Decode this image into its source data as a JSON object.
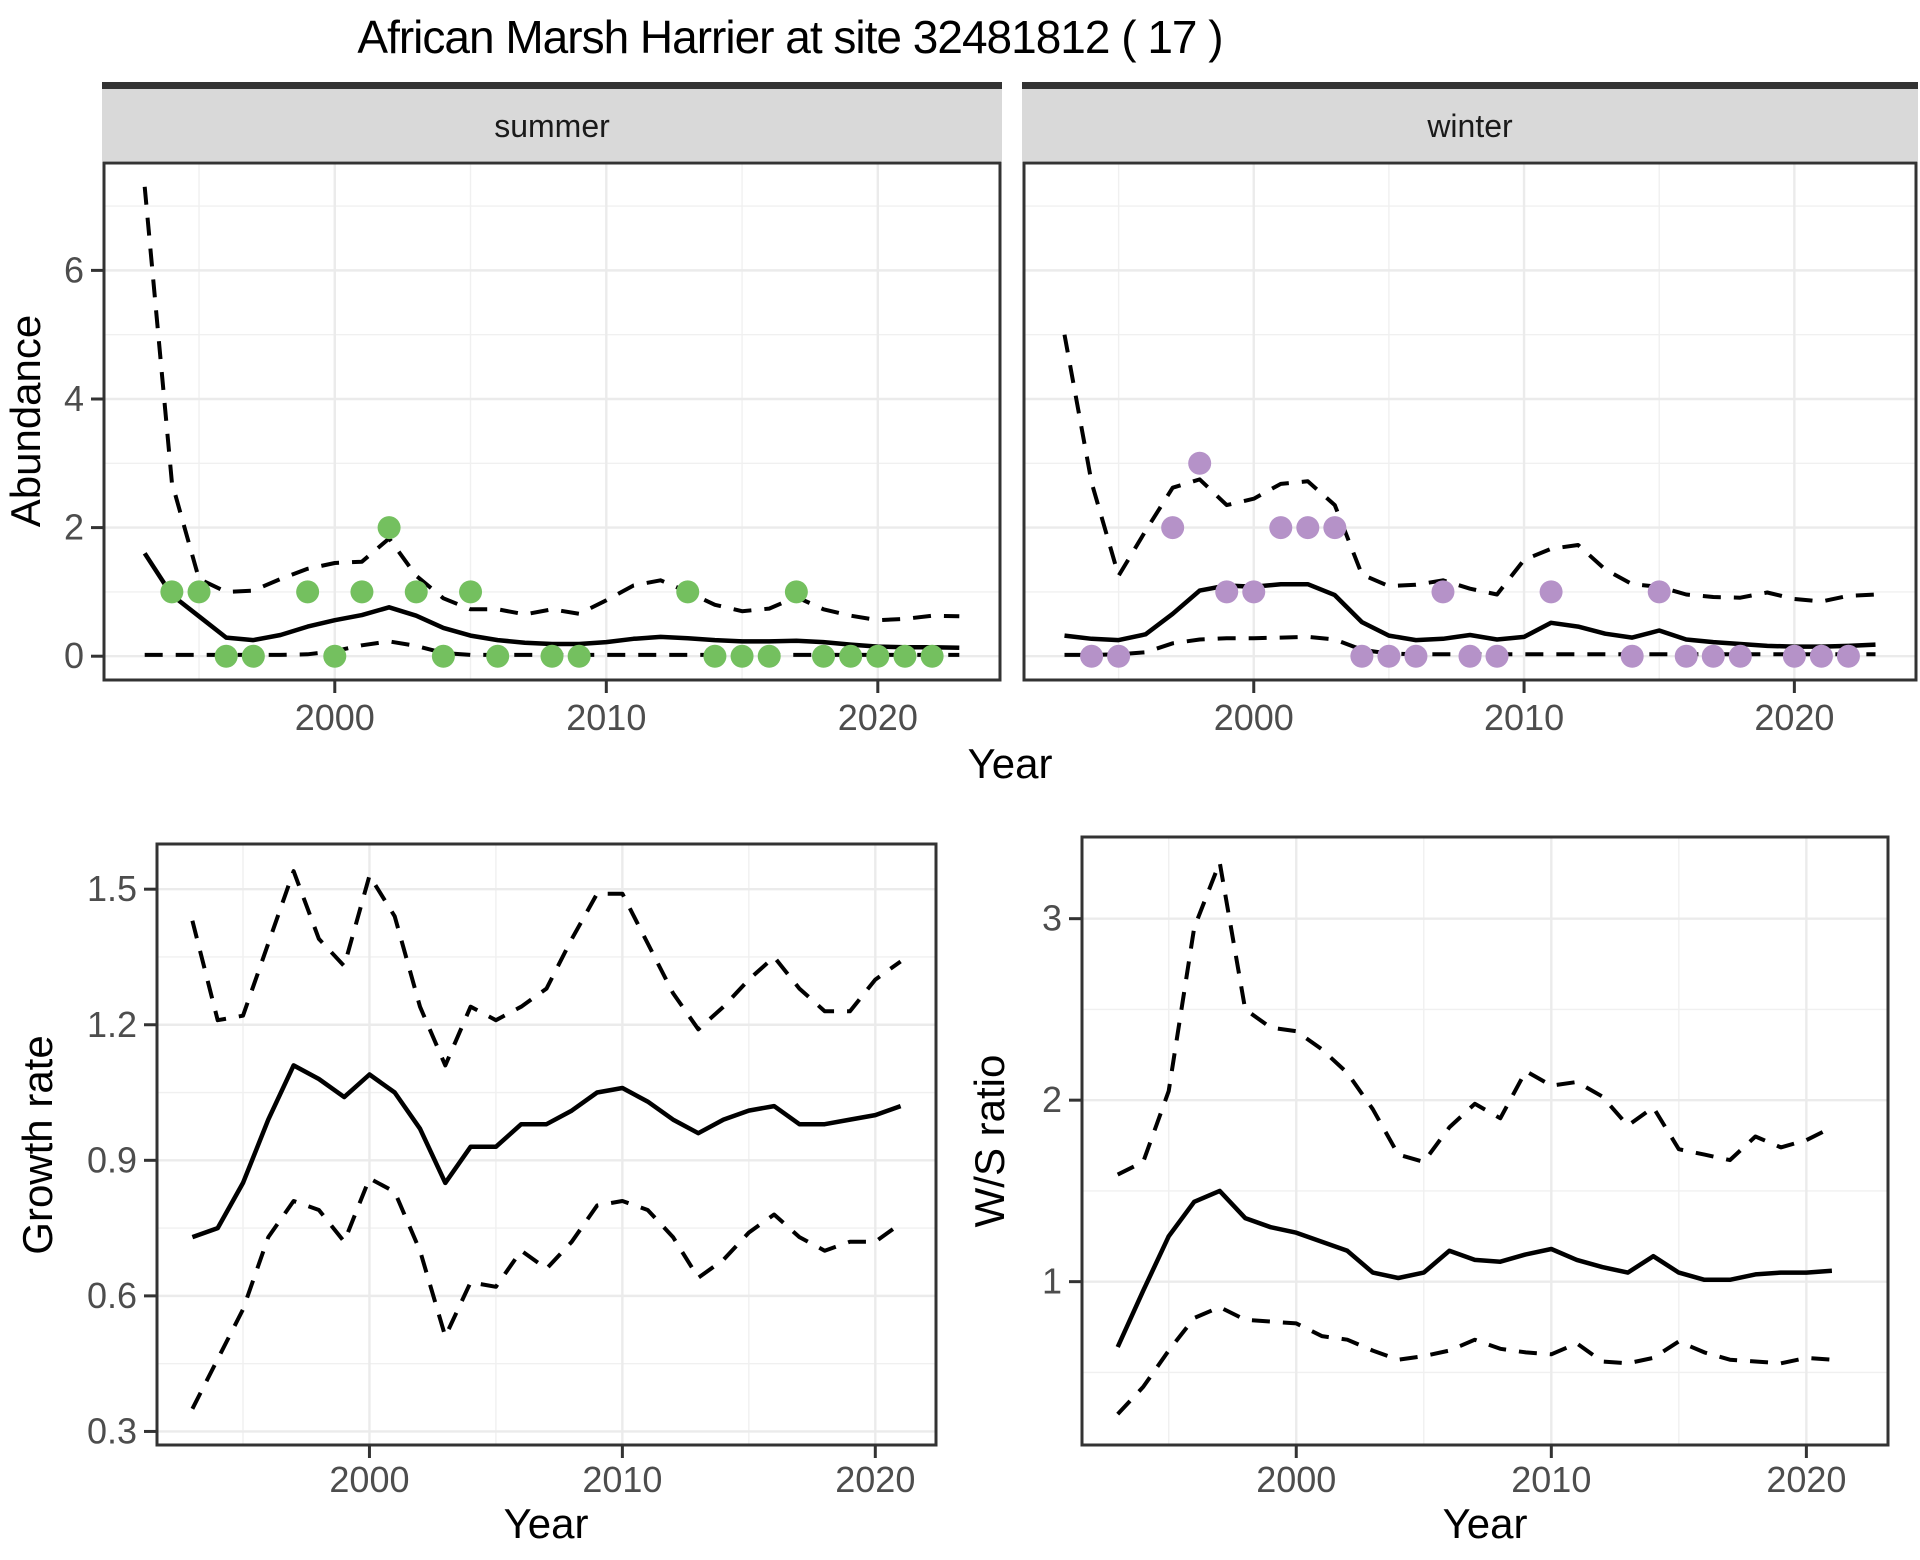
{
  "title": "African Marsh Harrier at site 32481812 ( 17 )",
  "top_row": {
    "ylabel": "Abundance",
    "xlabel": "Year",
    "facets": [
      {
        "label": "summer"
      },
      {
        "label": "winter"
      }
    ]
  },
  "bottom_row": {
    "left": {
      "ylabel": "Growth rate",
      "xlabel": "Year"
    },
    "right": {
      "ylabel": "W/S ratio",
      "xlabel": "Year"
    }
  },
  "colors": {
    "summer_point": "#74c05f",
    "winter_point": "#b592c8",
    "line": "#000000",
    "grid_major": "#ebebeb",
    "grid_minor": "#f0f0f0",
    "panel_border": "#333333",
    "strip_fill": "#d9d9d9",
    "strip_border": "#333333",
    "tick_text": "#4d4d4d",
    "axis_title_text": "#000000"
  },
  "chart_data": [
    {
      "id": "abundance-summer",
      "type": "line",
      "facet_label": "summer",
      "xlabel": "Year",
      "ylabel": "Abundance",
      "x": [
        1993,
        1994,
        1995,
        1996,
        1997,
        1998,
        1999,
        2000,
        2001,
        2002,
        2003,
        2004,
        2005,
        2006,
        2007,
        2008,
        2009,
        2010,
        2011,
        2012,
        2013,
        2014,
        2015,
        2016,
        2017,
        2018,
        2019,
        2020,
        2021,
        2022,
        2023
      ],
      "series": [
        {
          "name": "fitted",
          "style": "solid",
          "values": [
            1.6,
            0.95,
            0.62,
            0.29,
            0.25,
            0.33,
            0.46,
            0.56,
            0.64,
            0.76,
            0.63,
            0.44,
            0.32,
            0.25,
            0.21,
            0.19,
            0.19,
            0.22,
            0.27,
            0.3,
            0.28,
            0.25,
            0.23,
            0.23,
            0.24,
            0.22,
            0.18,
            0.15,
            0.14,
            0.14,
            0.13
          ]
        },
        {
          "name": "ci_upper",
          "style": "dashed",
          "values": [
            7.3,
            2.7,
            1.2,
            1.0,
            1.02,
            1.2,
            1.36,
            1.45,
            1.47,
            1.83,
            1.25,
            0.9,
            0.73,
            0.73,
            0.65,
            0.73,
            0.66,
            0.87,
            1.1,
            1.18,
            1.0,
            0.8,
            0.7,
            0.74,
            0.92,
            0.73,
            0.63,
            0.56,
            0.58,
            0.63,
            0.62
          ]
        },
        {
          "name": "ci_lower",
          "style": "dashed",
          "values": [
            0.02,
            0.02,
            0.02,
            0.02,
            0.02,
            0.02,
            0.03,
            0.08,
            0.17,
            0.23,
            0.16,
            0.05,
            0.02,
            0.02,
            0.02,
            0.02,
            0.02,
            0.02,
            0.02,
            0.02,
            0.02,
            0.02,
            0.02,
            0.02,
            0.02,
            0.02,
            0.02,
            0.02,
            0.02,
            0.02,
            0.02
          ]
        }
      ],
      "points": {
        "name": "observed_counts",
        "color_key": "summer_point",
        "data": [
          [
            1994,
            1
          ],
          [
            1995,
            1
          ],
          [
            1996,
            0
          ],
          [
            1997,
            0
          ],
          [
            1999,
            1
          ],
          [
            2000,
            0
          ],
          [
            2001,
            1
          ],
          [
            2002,
            2
          ],
          [
            2003,
            1
          ],
          [
            2004,
            0
          ],
          [
            2005,
            1
          ],
          [
            2006,
            0
          ],
          [
            2008,
            0
          ],
          [
            2009,
            0
          ],
          [
            2013,
            1
          ],
          [
            2014,
            0
          ],
          [
            2015,
            0
          ],
          [
            2016,
            0
          ],
          [
            2017,
            1
          ],
          [
            2018,
            0
          ],
          [
            2019,
            0
          ],
          [
            2020,
            0
          ],
          [
            2021,
            0
          ],
          [
            2022,
            0
          ]
        ]
      },
      "xlim": [
        1991.5,
        2024.5
      ],
      "ylim": [
        -0.37,
        7.67
      ],
      "xticks": [
        2000,
        2010,
        2020
      ],
      "xminor": [
        1995,
        2005,
        2015
      ],
      "yticks": [
        0,
        2,
        4,
        6
      ],
      "yminor": [
        1,
        3,
        5,
        7
      ],
      "grid": true,
      "legend": "none"
    },
    {
      "id": "abundance-winter",
      "type": "line",
      "facet_label": "winter",
      "xlabel": "Year",
      "ylabel": "Abundance",
      "x": [
        1993,
        1994,
        1995,
        1996,
        1997,
        1998,
        1999,
        2000,
        2001,
        2002,
        2003,
        2004,
        2005,
        2006,
        2007,
        2008,
        2009,
        2010,
        2011,
        2012,
        2013,
        2014,
        2015,
        2016,
        2017,
        2018,
        2019,
        2020,
        2021,
        2022,
        2023
      ],
      "series": [
        {
          "name": "fitted",
          "style": "solid",
          "values": [
            0.32,
            0.27,
            0.25,
            0.34,
            0.66,
            1.02,
            1.1,
            1.08,
            1.12,
            1.12,
            0.95,
            0.53,
            0.32,
            0.25,
            0.27,
            0.33,
            0.26,
            0.3,
            0.52,
            0.46,
            0.35,
            0.29,
            0.4,
            0.26,
            0.22,
            0.19,
            0.16,
            0.15,
            0.15,
            0.16,
            0.18
          ]
        },
        {
          "name": "ci_upper",
          "style": "dashed",
          "values": [
            5.0,
            2.7,
            1.25,
            1.95,
            2.62,
            2.75,
            2.35,
            2.45,
            2.68,
            2.72,
            2.35,
            1.27,
            1.09,
            1.11,
            1.18,
            1.05,
            0.96,
            1.5,
            1.67,
            1.73,
            1.35,
            1.12,
            1.08,
            0.96,
            0.92,
            0.91,
            0.99,
            0.89,
            0.85,
            0.94,
            0.96
          ]
        },
        {
          "name": "ci_lower",
          "style": "dashed",
          "values": [
            0.02,
            0.02,
            0.03,
            0.06,
            0.2,
            0.26,
            0.28,
            0.28,
            0.29,
            0.3,
            0.26,
            0.1,
            0.04,
            0.03,
            0.03,
            0.03,
            0.03,
            0.03,
            0.03,
            0.03,
            0.03,
            0.03,
            0.03,
            0.03,
            0.03,
            0.03,
            0.03,
            0.03,
            0.03,
            0.03,
            0.03
          ]
        }
      ],
      "points": {
        "name": "observed_counts",
        "color_key": "winter_point",
        "data": [
          [
            1994,
            0
          ],
          [
            1995,
            0
          ],
          [
            1997,
            2
          ],
          [
            1998,
            3
          ],
          [
            1999,
            1
          ],
          [
            2000,
            1
          ],
          [
            2001,
            2
          ],
          [
            2002,
            2
          ],
          [
            2003,
            2
          ],
          [
            2004,
            0
          ],
          [
            2005,
            0
          ],
          [
            2006,
            0
          ],
          [
            2007,
            1
          ],
          [
            2008,
            0
          ],
          [
            2009,
            0
          ],
          [
            2011,
            1
          ],
          [
            2014,
            0
          ],
          [
            2015,
            1
          ],
          [
            2016,
            0
          ],
          [
            2017,
            0
          ],
          [
            2018,
            0
          ],
          [
            2020,
            0
          ],
          [
            2021,
            0
          ],
          [
            2022,
            0
          ]
        ]
      },
      "xlim": [
        1991.5,
        2024.5
      ],
      "ylim": [
        -0.37,
        7.67
      ],
      "xticks": [
        2000,
        2010,
        2020
      ],
      "xminor": [
        1995,
        2005,
        2015
      ],
      "yticks": [
        0,
        2,
        4,
        6
      ],
      "yminor": [
        1,
        3,
        5,
        7
      ],
      "grid": true,
      "legend": "none"
    },
    {
      "id": "growth-rate",
      "type": "line",
      "facet_label": "",
      "xlabel": "Year",
      "ylabel": "Growth rate",
      "x": [
        1993,
        1994,
        1995,
        1996,
        1997,
        1998,
        1999,
        2000,
        2001,
        2002,
        2003,
        2004,
        2005,
        2006,
        2007,
        2008,
        2009,
        2010,
        2011,
        2012,
        2013,
        2014,
        2015,
        2016,
        2017,
        2018,
        2019,
        2020,
        2021
      ],
      "series": [
        {
          "name": "fitted",
          "style": "solid",
          "values": [
            0.73,
            0.75,
            0.85,
            0.99,
            1.11,
            1.08,
            1.04,
            1.09,
            1.05,
            0.97,
            0.85,
            0.93,
            0.93,
            0.98,
            0.98,
            1.01,
            1.05,
            1.06,
            1.03,
            0.99,
            0.96,
            0.99,
            1.01,
            1.02,
            0.98,
            0.98,
            0.99,
            1.0,
            1.02
          ]
        },
        {
          "name": "ci_upper",
          "style": "dashed",
          "values": [
            1.43,
            1.21,
            1.22,
            1.38,
            1.54,
            1.39,
            1.33,
            1.53,
            1.44,
            1.24,
            1.11,
            1.24,
            1.21,
            1.24,
            1.28,
            1.39,
            1.49,
            1.49,
            1.38,
            1.27,
            1.19,
            1.24,
            1.3,
            1.35,
            1.28,
            1.23,
            1.23,
            1.3,
            1.34
          ]
        },
        {
          "name": "ci_lower",
          "style": "dashed",
          "values": [
            0.35,
            0.46,
            0.57,
            0.73,
            0.81,
            0.79,
            0.72,
            0.86,
            0.83,
            0.7,
            0.51,
            0.63,
            0.62,
            0.7,
            0.66,
            0.72,
            0.8,
            0.81,
            0.79,
            0.73,
            0.64,
            0.68,
            0.74,
            0.78,
            0.73,
            0.7,
            0.72,
            0.72,
            0.76
          ]
        }
      ],
      "points": null,
      "xlim": [
        1991.6,
        2022.4
      ],
      "ylim": [
        0.27,
        1.6
      ],
      "xticks": [
        2000,
        2010,
        2020
      ],
      "xminor": [
        1995,
        2005,
        2015
      ],
      "yticks": [
        0.3,
        0.6,
        0.9,
        1.2,
        1.5
      ],
      "yminor": [
        0.45,
        0.75,
        1.05,
        1.35
      ],
      "ytick_labels": [
        "0.3",
        "0.6",
        "0.9",
        "1.2",
        "1.5"
      ],
      "grid": true,
      "legend": "none"
    },
    {
      "id": "ws-ratio",
      "type": "line",
      "facet_label": "",
      "xlabel": "Year",
      "ylabel": "W/S ratio",
      "x": [
        1993,
        1994,
        1995,
        1996,
        1997,
        1998,
        1999,
        2000,
        2001,
        2002,
        2003,
        2004,
        2005,
        2006,
        2007,
        2008,
        2009,
        2010,
        2011,
        2012,
        2013,
        2014,
        2015,
        2016,
        2017,
        2018,
        2019,
        2020,
        2021
      ],
      "series": [
        {
          "name": "fitted",
          "style": "solid",
          "values": [
            0.64,
            0.95,
            1.25,
            1.44,
            1.5,
            1.35,
            1.3,
            1.27,
            1.22,
            1.17,
            1.05,
            1.02,
            1.05,
            1.17,
            1.12,
            1.11,
            1.15,
            1.18,
            1.12,
            1.08,
            1.05,
            1.14,
            1.05,
            1.01,
            1.01,
            1.04,
            1.05,
            1.05,
            1.06
          ]
        },
        {
          "name": "ci_upper",
          "style": "dashed",
          "values": [
            1.59,
            1.66,
            2.05,
            2.95,
            3.31,
            2.5,
            2.4,
            2.38,
            2.28,
            2.15,
            1.95,
            1.7,
            1.66,
            1.85,
            1.98,
            1.9,
            2.16,
            2.08,
            2.1,
            2.02,
            1.86,
            1.96,
            1.73,
            1.7,
            1.67,
            1.8,
            1.74,
            1.78,
            1.85
          ]
        },
        {
          "name": "ci_lower",
          "style": "dashed",
          "values": [
            0.27,
            0.42,
            0.62,
            0.8,
            0.86,
            0.79,
            0.78,
            0.77,
            0.7,
            0.68,
            0.62,
            0.57,
            0.59,
            0.62,
            0.68,
            0.63,
            0.61,
            0.6,
            0.66,
            0.56,
            0.55,
            0.58,
            0.67,
            0.61,
            0.57,
            0.56,
            0.55,
            0.58,
            0.57
          ]
        }
      ],
      "points": null,
      "xlim": [
        1991.6,
        2023.2
      ],
      "ylim": [
        0.1,
        3.45
      ],
      "xticks": [
        2000,
        2010,
        2020
      ],
      "xminor": [
        1995,
        2005,
        2015
      ],
      "yticks": [
        1,
        2,
        3
      ],
      "yminor": [
        0.5,
        1.5,
        2.5
      ],
      "ytick_labels": [
        "1",
        "2",
        "3"
      ],
      "grid": true,
      "legend": "none"
    }
  ]
}
